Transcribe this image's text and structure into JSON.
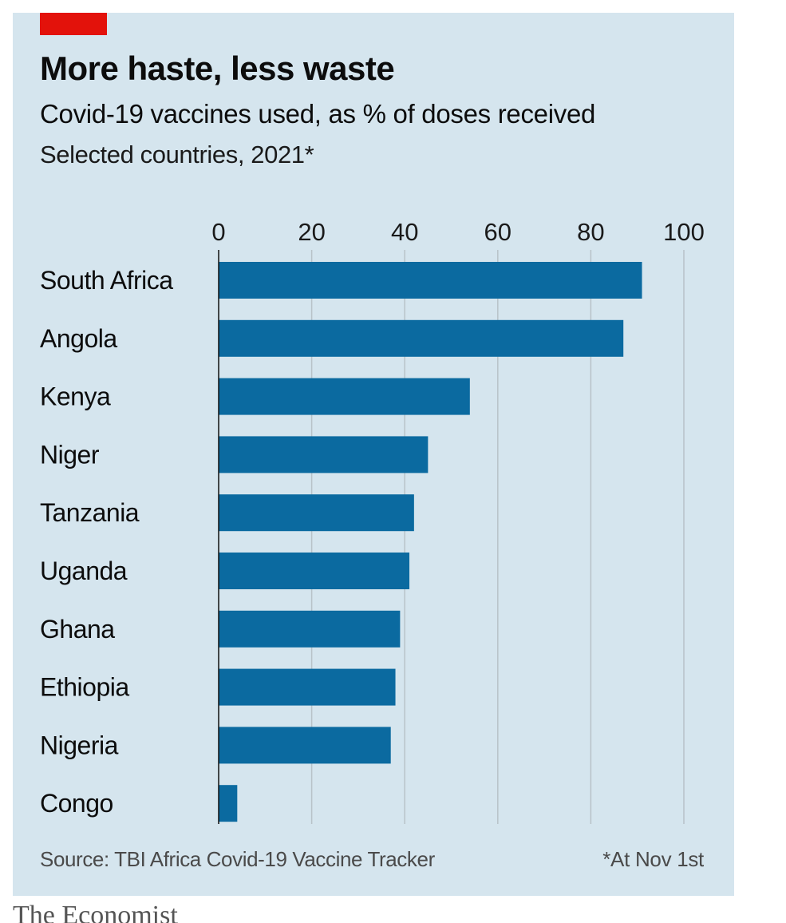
{
  "title": "More haste, less waste",
  "subtitle": "Covid-19 vaccines used, as % of doses received",
  "note": "Selected countries, 2021*",
  "source": "Source: TBI Africa Covid-19 Vaccine Tracker",
  "footnote": "*At Nov 1st",
  "brand": "The Economist",
  "colors": {
    "bar": "#0b6aa0",
    "background": "#d5e5ee",
    "grid": "#b8c2c8",
    "accent": "#e3120b"
  },
  "chart_data": {
    "type": "bar",
    "orientation": "horizontal",
    "categories": [
      "South Africa",
      "Angola",
      "Kenya",
      "Niger",
      "Tanzania",
      "Uganda",
      "Ghana",
      "Ethiopia",
      "Nigeria",
      "Congo"
    ],
    "values": [
      91,
      87,
      54,
      45,
      42,
      41,
      39,
      38,
      37,
      4
    ],
    "xlim": [
      0,
      100
    ],
    "xticks": [
      0,
      20,
      40,
      60,
      80,
      100
    ],
    "xtick_labels": [
      "0",
      "20",
      "40",
      "60",
      "80",
      "100"
    ],
    "grid": true,
    "axis_position": "top"
  }
}
